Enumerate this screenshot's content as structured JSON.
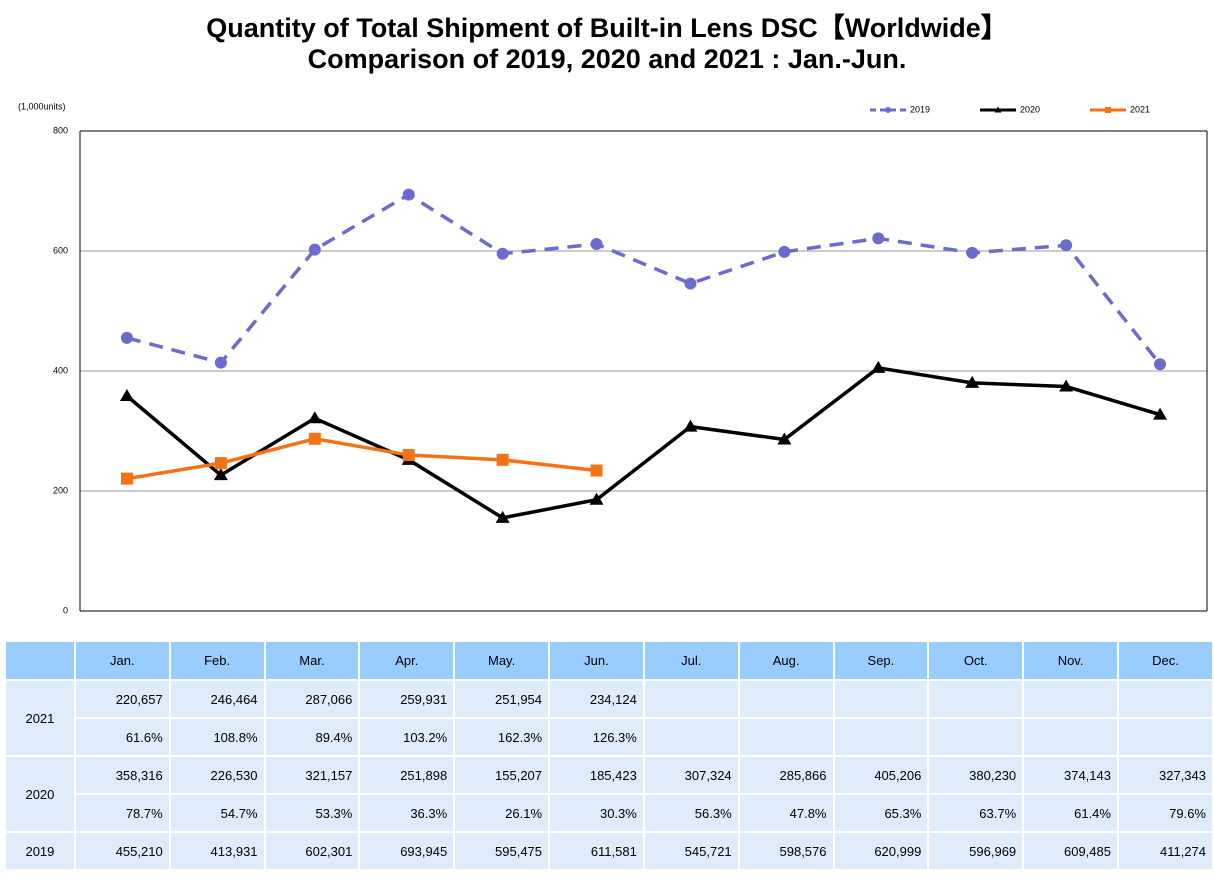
{
  "chart_data": {
    "type": "line",
    "title": "Quantity of Total Shipment of Built-in Lens DSC【Worldwide】",
    "subtitle": "Comparison of 2019, 2020 and 2021 : Jan.-Jun.",
    "y_label": "(1,000units)",
    "categories": [
      "Jan.",
      "Feb.",
      "Mar.",
      "Apr.",
      "May.",
      "Jun.",
      "Jul.",
      "Aug.",
      "Sep.",
      "Oct.",
      "Nov.",
      "Dec."
    ],
    "ylim": [
      0,
      800
    ],
    "yticks": [
      0,
      200,
      400,
      600,
      800
    ],
    "grid": true,
    "legend": "top-right",
    "series": [
      {
        "name": "2019",
        "color": "#6b6bcc",
        "dash": true,
        "marker": "circle",
        "values": [
          455.21,
          413.931,
          602.301,
          693.945,
          595.475,
          611.581,
          545.721,
          598.576,
          620.999,
          596.969,
          609.485,
          411.274
        ],
        "value_labels": [
          "455,210",
          "413,931",
          "602,301",
          "693,945",
          "595,475",
          "611,581",
          "545,721",
          "598,576",
          "620,999",
          "596,969",
          "609,485",
          "411,274"
        ]
      },
      {
        "name": "2020",
        "color": "#000000",
        "dash": false,
        "marker": "triangle",
        "values": [
          358.316,
          226.53,
          321.157,
          251.898,
          155.207,
          185.423,
          307.324,
          285.866,
          405.206,
          380.23,
          374.143,
          327.343
        ],
        "value_labels": [
          "358,316",
          "226,530",
          "321,157",
          "251,898",
          "155,207",
          "185,423",
          "307,324",
          "285,866",
          "405,206",
          "380,230",
          "374,143",
          "327,343"
        ],
        "ratios": [
          "78.7%",
          "54.7%",
          "53.3%",
          "36.3%",
          "26.1%",
          "30.3%",
          "56.3%",
          "47.8%",
          "65.3%",
          "63.7%",
          "61.4%",
          "79.6%"
        ]
      },
      {
        "name": "2021",
        "color": "#f47216",
        "dash": false,
        "marker": "square",
        "values": [
          220.657,
          246.464,
          287.066,
          259.931,
          251.954,
          234.124,
          null,
          null,
          null,
          null,
          null,
          null
        ],
        "value_labels": [
          "220,657",
          "246,464",
          "287,066",
          "259,931",
          "251,954",
          "234,124",
          null,
          null,
          null,
          null,
          null,
          null
        ],
        "ratios": [
          "61.6%",
          "108.8%",
          "89.4%",
          "103.2%",
          "162.3%",
          "126.3%",
          null,
          null,
          null,
          null,
          null,
          null
        ]
      }
    ]
  }
}
